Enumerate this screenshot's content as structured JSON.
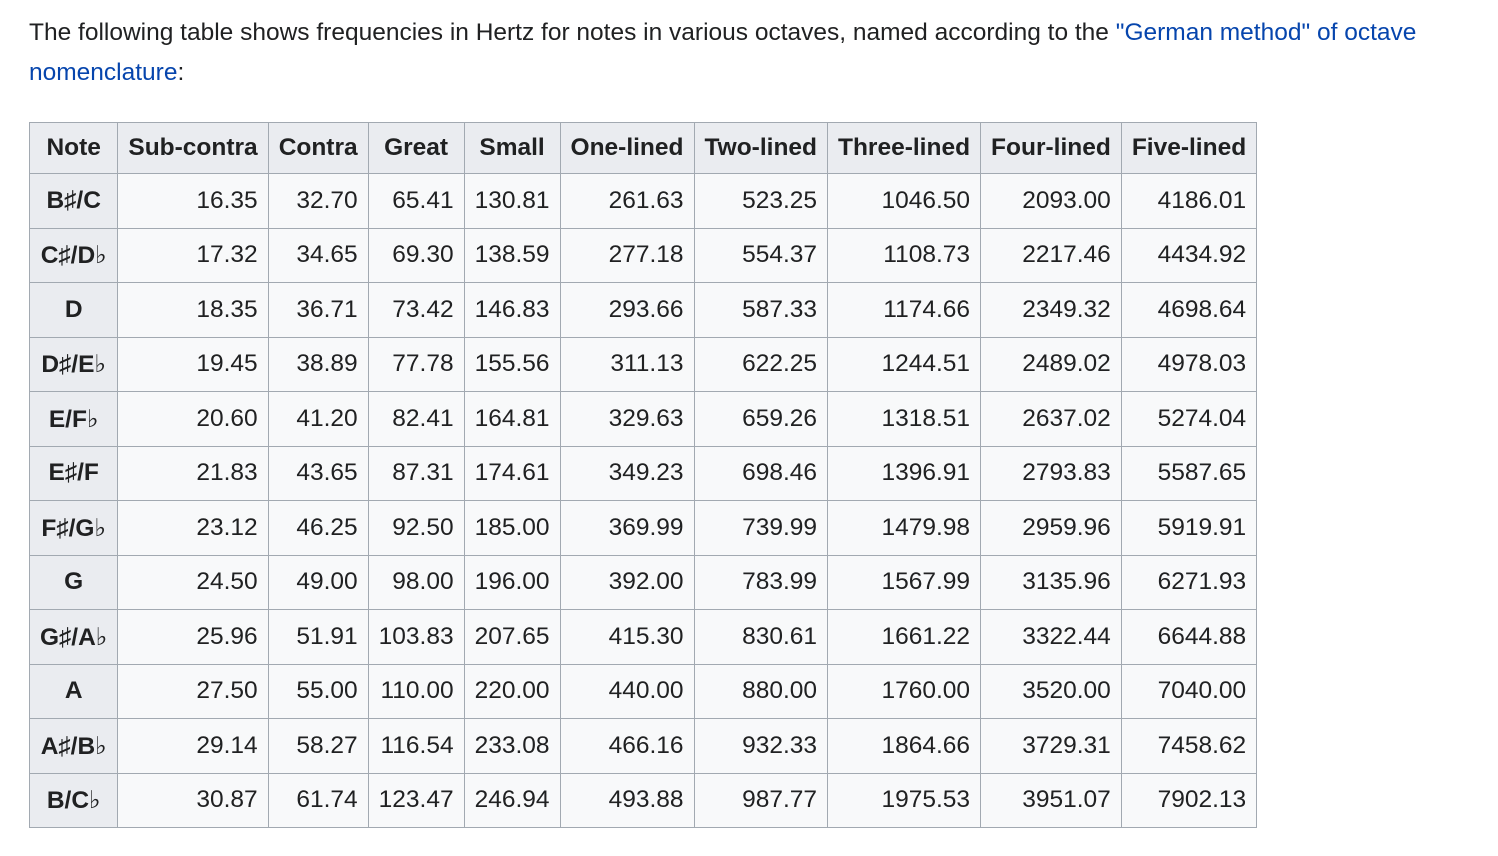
{
  "intro": {
    "before": "The following table shows frequencies in Hertz for notes in various octaves, named according to the ",
    "link": "\"German method\" of octave nomenclature",
    "after": ":"
  },
  "table": {
    "headers": [
      "Note",
      "Sub-contra",
      "Contra",
      "Great",
      "Small",
      "One-lined",
      "Two-lined",
      "Three-lined",
      "Four-lined",
      "Five-lined"
    ],
    "rows": [
      {
        "note": "B♯/C",
        "values": [
          "16.35",
          "32.70",
          "65.41",
          "130.81",
          "261.63",
          "523.25",
          "1046.50",
          "2093.00",
          "4186.01"
        ]
      },
      {
        "note": "C♯/D♭",
        "values": [
          "17.32",
          "34.65",
          "69.30",
          "138.59",
          "277.18",
          "554.37",
          "1108.73",
          "2217.46",
          "4434.92"
        ]
      },
      {
        "note": "D",
        "values": [
          "18.35",
          "36.71",
          "73.42",
          "146.83",
          "293.66",
          "587.33",
          "1174.66",
          "2349.32",
          "4698.64"
        ]
      },
      {
        "note": "D♯/E♭",
        "values": [
          "19.45",
          "38.89",
          "77.78",
          "155.56",
          "311.13",
          "622.25",
          "1244.51",
          "2489.02",
          "4978.03"
        ]
      },
      {
        "note": "E/F♭",
        "values": [
          "20.60",
          "41.20",
          "82.41",
          "164.81",
          "329.63",
          "659.26",
          "1318.51",
          "2637.02",
          "5274.04"
        ]
      },
      {
        "note": "E♯/F",
        "values": [
          "21.83",
          "43.65",
          "87.31",
          "174.61",
          "349.23",
          "698.46",
          "1396.91",
          "2793.83",
          "5587.65"
        ]
      },
      {
        "note": "F♯/G♭",
        "values": [
          "23.12",
          "46.25",
          "92.50",
          "185.00",
          "369.99",
          "739.99",
          "1479.98",
          "2959.96",
          "5919.91"
        ]
      },
      {
        "note": "G",
        "values": [
          "24.50",
          "49.00",
          "98.00",
          "196.00",
          "392.00",
          "783.99",
          "1567.99",
          "3135.96",
          "6271.93"
        ]
      },
      {
        "note": "G♯/A♭",
        "values": [
          "25.96",
          "51.91",
          "103.83",
          "207.65",
          "415.30",
          "830.61",
          "1661.22",
          "3322.44",
          "6644.88"
        ]
      },
      {
        "note": "A",
        "values": [
          "27.50",
          "55.00",
          "110.00",
          "220.00",
          "440.00",
          "880.00",
          "1760.00",
          "3520.00",
          "7040.00"
        ]
      },
      {
        "note": "A♯/B♭",
        "values": [
          "29.14",
          "58.27",
          "116.54",
          "233.08",
          "466.16",
          "932.33",
          "1864.66",
          "3729.31",
          "7458.62"
        ]
      },
      {
        "note": "B/C♭",
        "values": [
          "30.87",
          "61.74",
          "123.47",
          "246.94",
          "493.88",
          "987.77",
          "1975.53",
          "3951.07",
          "7902.13"
        ]
      }
    ]
  }
}
